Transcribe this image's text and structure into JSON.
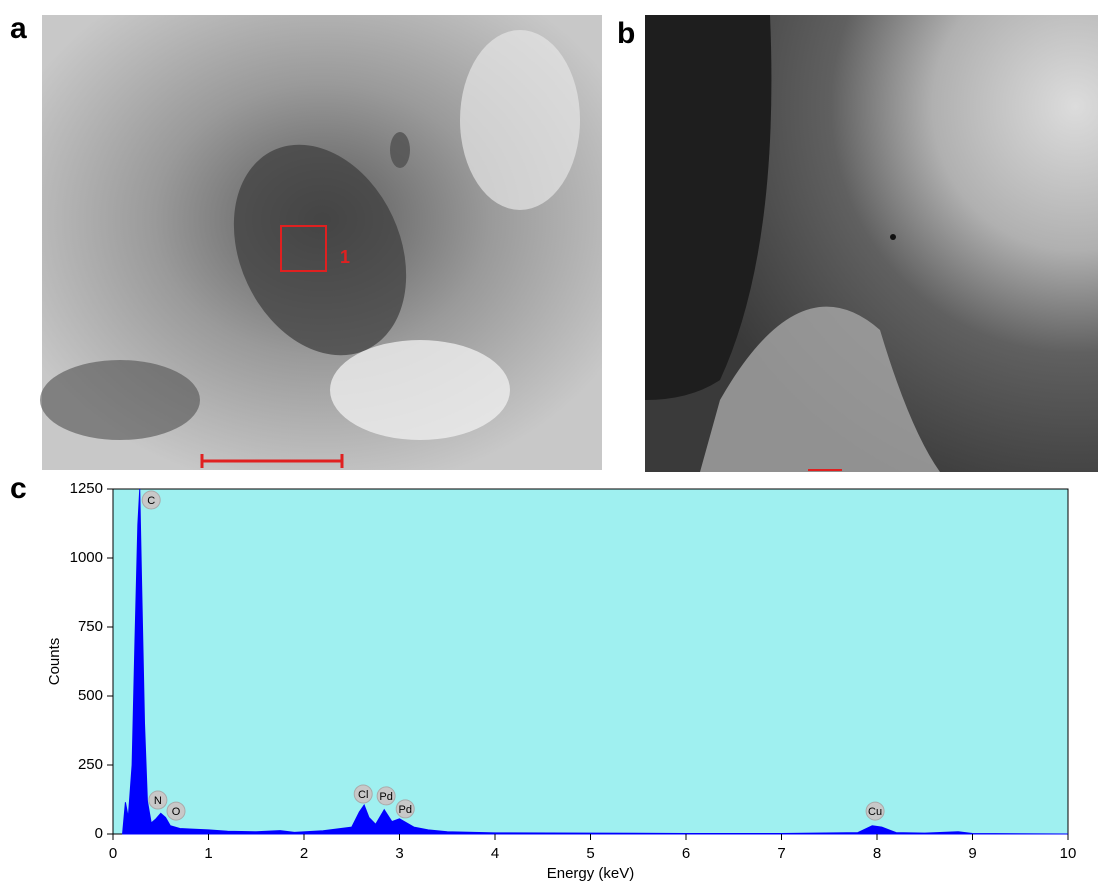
{
  "panel_labels": [
    "a",
    "b",
    "c"
  ],
  "region_label": "1",
  "chart_data": {
    "type": "area",
    "xlabel": "Energy (keV)",
    "ylabel": "Counts",
    "x": [
      0.1,
      0.13,
      0.16,
      0.2,
      0.23,
      0.26,
      0.28,
      0.3,
      0.33,
      0.36,
      0.4,
      0.45,
      0.5,
      0.55,
      0.6,
      0.7,
      0.8,
      1.0,
      1.2,
      1.5,
      1.75,
      1.9,
      2.2,
      2.5,
      2.58,
      2.63,
      2.68,
      2.75,
      2.84,
      2.92,
      3.0,
      3.05,
      3.15,
      3.3,
      3.5,
      4,
      5,
      6,
      7,
      7.8,
      7.95,
      8.05,
      8.2,
      8.5,
      8.85,
      9,
      10
    ],
    "values": [
      0,
      115,
      60,
      250,
      700,
      1120,
      1250,
      900,
      400,
      120,
      40,
      55,
      75,
      60,
      30,
      20,
      18,
      15,
      10,
      8,
      12,
      6,
      12,
      25,
      80,
      105,
      60,
      35,
      88,
      45,
      55,
      45,
      25,
      15,
      8,
      4,
      3,
      2,
      2,
      5,
      30,
      25,
      5,
      3,
      8,
      2,
      0
    ],
    "color": "#0000ff",
    "plot_background": "#9ff0f0",
    "xlim": [
      0,
      10
    ],
    "ylim": [
      0,
      1250
    ],
    "xticks": [
      0,
      1,
      2,
      3,
      4,
      5,
      6,
      7,
      8,
      9,
      10
    ],
    "yticks": [
      0,
      250,
      500,
      750,
      1000,
      1250
    ],
    "annotations": [
      {
        "text": "C",
        "x": 0.4,
        "y": 1210
      },
      {
        "text": "N",
        "x": 0.47,
        "y": 123
      },
      {
        "text": "O",
        "x": 0.66,
        "y": 83
      },
      {
        "text": "Cl",
        "x": 2.62,
        "y": 145
      },
      {
        "text": "Pd",
        "x": 2.86,
        "y": 138
      },
      {
        "text": "Pd",
        "x": 3.06,
        "y": 91
      },
      {
        "text": "Cu",
        "x": 7.98,
        "y": 83
      }
    ]
  }
}
